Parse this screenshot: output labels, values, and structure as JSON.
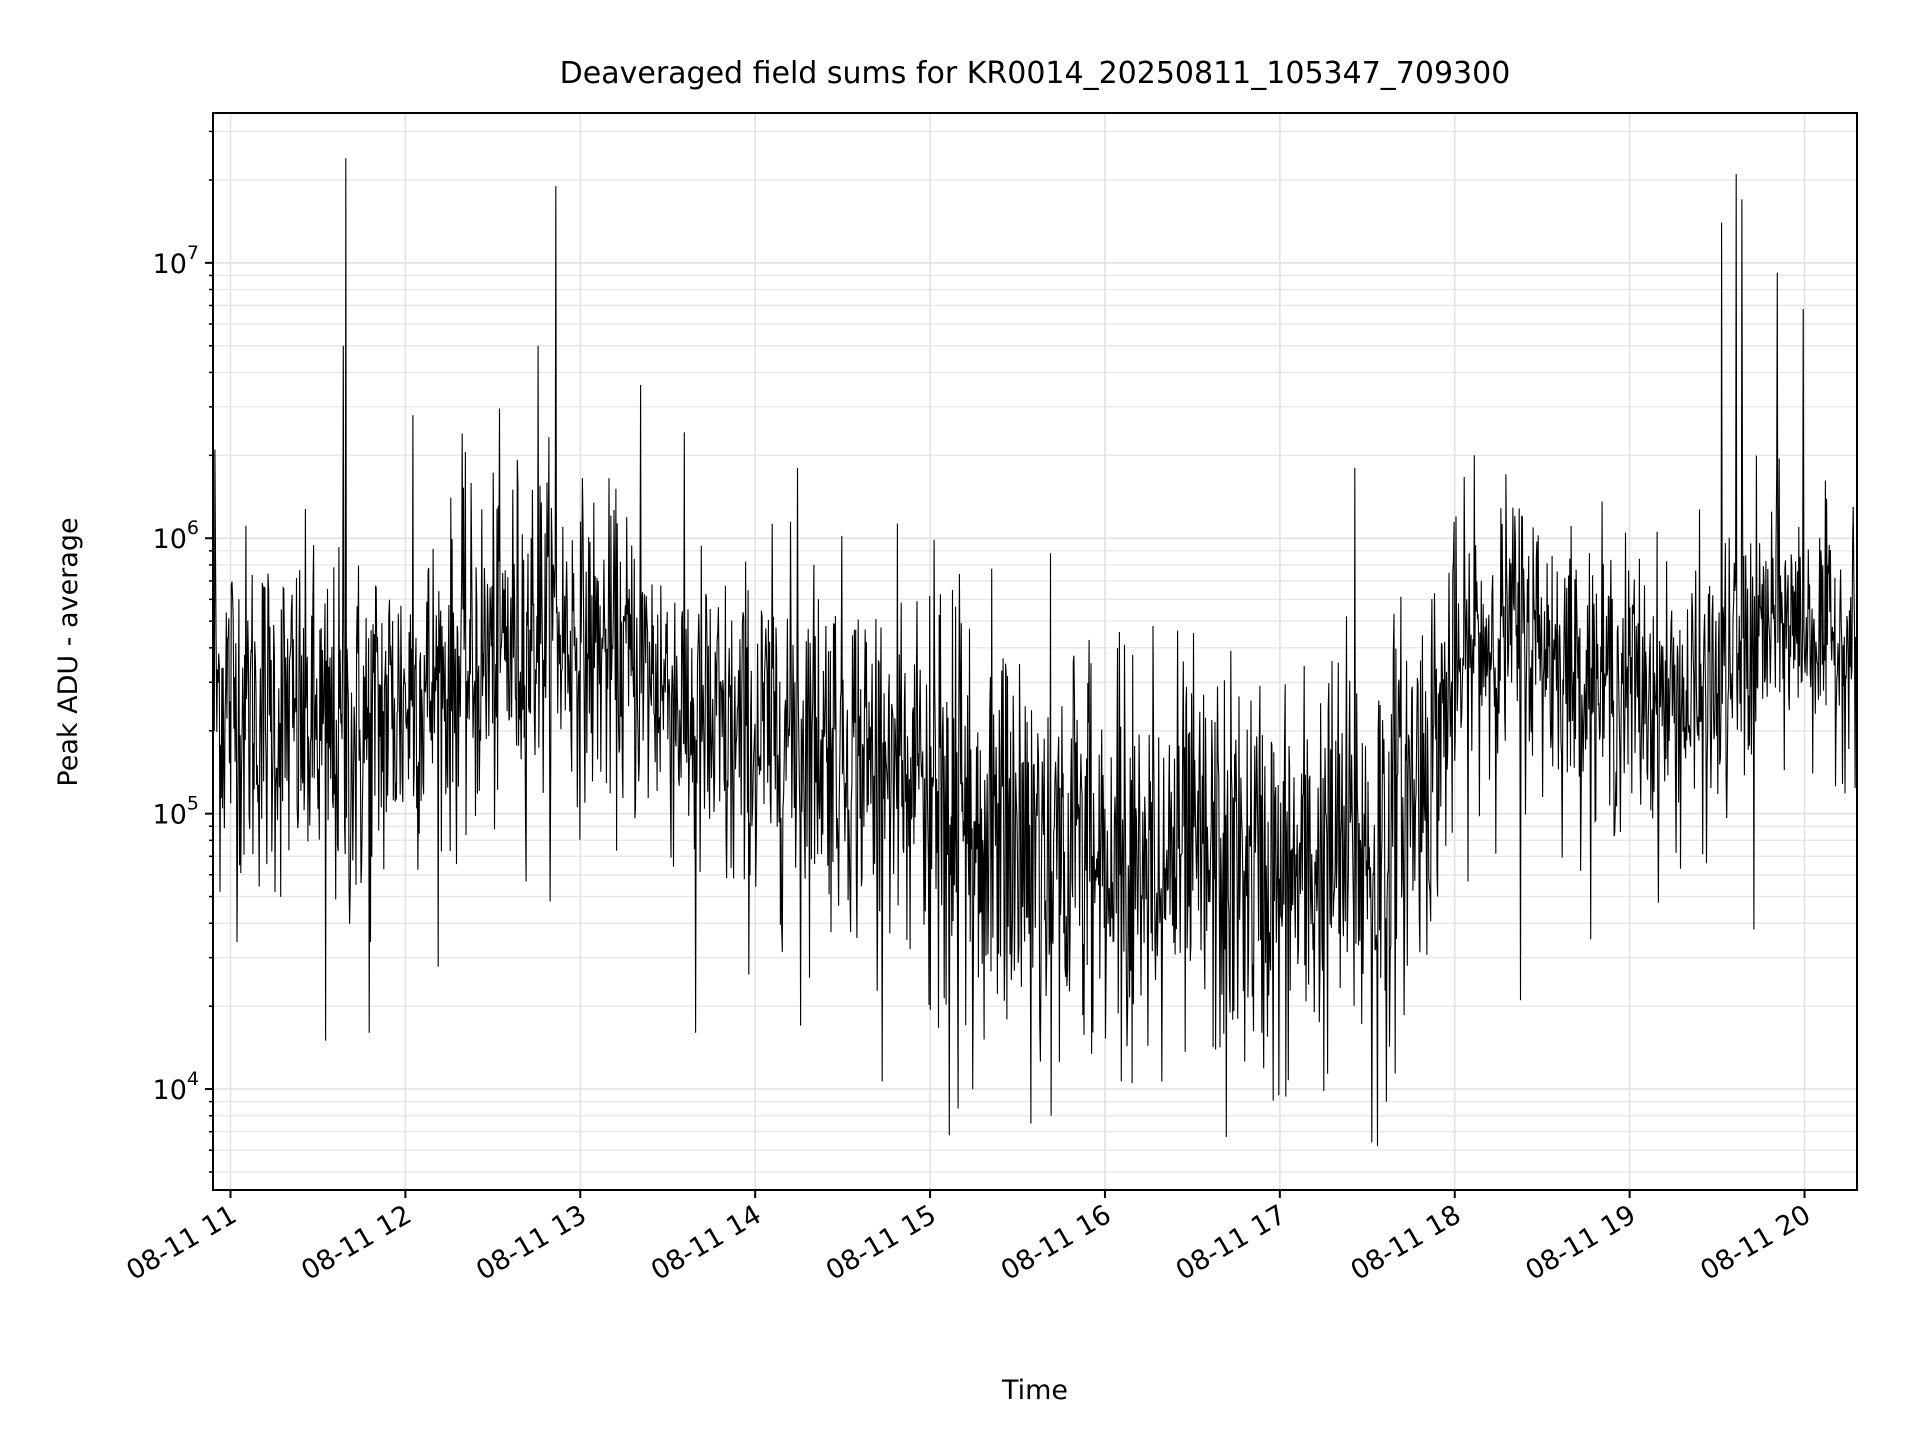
{
  "chart_data": {
    "type": "line",
    "title": "Deaveraged field sums for KR0014_20250811_105347_709300",
    "xlabel": "Time",
    "ylabel": "Peak ADU - average",
    "y_scale": "log",
    "ylim": [
      4300,
      35000000
    ],
    "xlim": [
      "2025-08-11 10:54",
      "2025-08-11 20:18"
    ],
    "x_ticks": [
      {
        "value": "2025-08-11 11:00",
        "label": "08-11 11"
      },
      {
        "value": "2025-08-11 12:00",
        "label": "08-11 12"
      },
      {
        "value": "2025-08-11 13:00",
        "label": "08-11 13"
      },
      {
        "value": "2025-08-11 14:00",
        "label": "08-11 14"
      },
      {
        "value": "2025-08-11 15:00",
        "label": "08-11 15"
      },
      {
        "value": "2025-08-11 16:00",
        "label": "08-11 16"
      },
      {
        "value": "2025-08-11 17:00",
        "label": "08-11 17"
      },
      {
        "value": "2025-08-11 18:00",
        "label": "08-11 18"
      },
      {
        "value": "2025-08-11 19:00",
        "label": "08-11 19"
      },
      {
        "value": "2025-08-11 20:00",
        "label": "08-11 20"
      }
    ],
    "y_ticks": [
      {
        "value": 10000,
        "base": "10",
        "exp": "4"
      },
      {
        "value": 100000,
        "base": "10",
        "exp": "5"
      },
      {
        "value": 1000000,
        "base": "10",
        "exp": "6"
      },
      {
        "value": 10000000,
        "base": "10",
        "exp": "7"
      }
    ],
    "grid": "major and minor",
    "line_color": "#000000",
    "series": [
      {
        "x": [
          "2025-08-11 10:54",
          "2025-08-11 11:00",
          "2025-08-11 11:10",
          "2025-08-11 11:20",
          "2025-08-11 11:30",
          "2025-08-11 11:40",
          "2025-08-11 11:50",
          "2025-08-11 12:00",
          "2025-08-11 12:10",
          "2025-08-11 12:20",
          "2025-08-11 12:30",
          "2025-08-11 12:40",
          "2025-08-11 12:50",
          "2025-08-11 13:00",
          "2025-08-11 13:10",
          "2025-08-11 13:20",
          "2025-08-11 13:30",
          "2025-08-11 13:40",
          "2025-08-11 13:50",
          "2025-08-11 14:00",
          "2025-08-11 14:10",
          "2025-08-11 14:20",
          "2025-08-11 14:30",
          "2025-08-11 14:40",
          "2025-08-11 14:50",
          "2025-08-11 15:00",
          "2025-08-11 15:10",
          "2025-08-11 15:20",
          "2025-08-11 15:30",
          "2025-08-11 15:40",
          "2025-08-11 15:50",
          "2025-08-11 16:00",
          "2025-08-11 16:10",
          "2025-08-11 16:20",
          "2025-08-11 16:30",
          "2025-08-11 16:40",
          "2025-08-11 16:50",
          "2025-08-11 17:00",
          "2025-08-11 17:10",
          "2025-08-11 17:20",
          "2025-08-11 17:30",
          "2025-08-11 17:40",
          "2025-08-11 17:50",
          "2025-08-11 18:00",
          "2025-08-11 18:10",
          "2025-08-11 18:20",
          "2025-08-11 18:30",
          "2025-08-11 18:40",
          "2025-08-11 18:50",
          "2025-08-11 19:00",
          "2025-08-11 19:10",
          "2025-08-11 19:20",
          "2025-08-11 19:30",
          "2025-08-11 19:40",
          "2025-08-11 19:50",
          "2025-08-11 20:00",
          "2025-08-11 20:10",
          "2025-08-11 20:18"
        ],
        "median": [
          280000,
          260000,
          230000,
          220000,
          200000,
          170000,
          210000,
          260000,
          290000,
          320000,
          380000,
          450000,
          480000,
          420000,
          380000,
          330000,
          290000,
          210000,
          170000,
          180000,
          200000,
          200000,
          180000,
          150000,
          140000,
          110000,
          90000,
          85000,
          80000,
          80000,
          75000,
          70000,
          68000,
          70000,
          65000,
          63000,
          62000,
          55000,
          60000,
          72000,
          70000,
          100000,
          150000,
          300000,
          420000,
          480000,
          420000,
          330000,
          300000,
          290000,
          260000,
          250000,
          270000,
          400000,
          500000,
          480000,
          420000,
          430000
        ],
        "spread": [
          0.85,
          0.8,
          0.75,
          0.75,
          0.75,
          0.8,
          0.8,
          0.7,
          0.7,
          0.7,
          0.75,
          0.75,
          0.7,
          0.65,
          0.65,
          0.65,
          0.7,
          0.75,
          0.75,
          0.75,
          0.75,
          0.75,
          0.75,
          0.8,
          0.8,
          0.9,
          0.9,
          0.9,
          0.9,
          0.9,
          0.9,
          0.85,
          0.85,
          0.85,
          0.85,
          0.85,
          0.85,
          0.85,
          0.85,
          0.9,
          0.9,
          0.85,
          0.8,
          0.65,
          0.6,
          0.6,
          0.6,
          0.6,
          0.6,
          0.6,
          0.6,
          0.6,
          0.6,
          0.6,
          0.55,
          0.5,
          0.5,
          0.5
        ],
        "spikes": [
          {
            "x": "2025-08-11 10:55",
            "y": 2100000
          },
          {
            "x": "2025-08-11 11:33",
            "y": 15000
          },
          {
            "x": "2025-08-11 11:39",
            "y": 5000000
          },
          {
            "x": "2025-08-11 11:40",
            "y": 24000000
          },
          {
            "x": "2025-08-11 11:48",
            "y": 16000
          },
          {
            "x": "2025-08-11 12:03",
            "y": 2800000
          },
          {
            "x": "2025-08-11 12:20",
            "y": 2400000
          },
          {
            "x": "2025-08-11 12:46",
            "y": 5000000
          },
          {
            "x": "2025-08-11 12:52",
            "y": 19000000
          },
          {
            "x": "2025-08-11 13:21",
            "y": 3600000
          },
          {
            "x": "2025-08-11 13:40",
            "y": 16000
          },
          {
            "x": "2025-08-11 14:15",
            "y": 1800000
          },
          {
            "x": "2025-08-11 14:16",
            "y": 17000
          },
          {
            "x": "2025-08-11 15:07",
            "y": 6800
          },
          {
            "x": "2025-08-11 15:10",
            "y": 8500
          },
          {
            "x": "2025-08-11 15:15",
            "y": 10000
          },
          {
            "x": "2025-08-11 15:35",
            "y": 7500
          },
          {
            "x": "2025-08-11 15:42",
            "y": 8000
          },
          {
            "x": "2025-08-11 16:42",
            "y": 6700
          },
          {
            "x": "2025-08-11 17:00",
            "y": 9500
          },
          {
            "x": "2025-08-11 17:26",
            "y": 1800000
          },
          {
            "x": "2025-08-11 17:32",
            "y": 6400
          },
          {
            "x": "2025-08-11 17:34",
            "y": 6200
          },
          {
            "x": "2025-08-11 17:37",
            "y": 9000
          },
          {
            "x": "2025-08-11 18:07",
            "y": 2000000
          },
          {
            "x": "2025-08-11 18:23",
            "y": 21000
          },
          {
            "x": "2025-08-11 19:32",
            "y": 14000000
          },
          {
            "x": "2025-08-11 19:37",
            "y": 21000000
          },
          {
            "x": "2025-08-11 19:39",
            "y": 17000000
          },
          {
            "x": "2025-08-11 19:43",
            "y": 38000
          },
          {
            "x": "2025-08-11 19:51",
            "y": 9200000
          },
          {
            "x": "2025-08-11 20:00",
            "y": 6800000
          }
        ]
      }
    ]
  }
}
